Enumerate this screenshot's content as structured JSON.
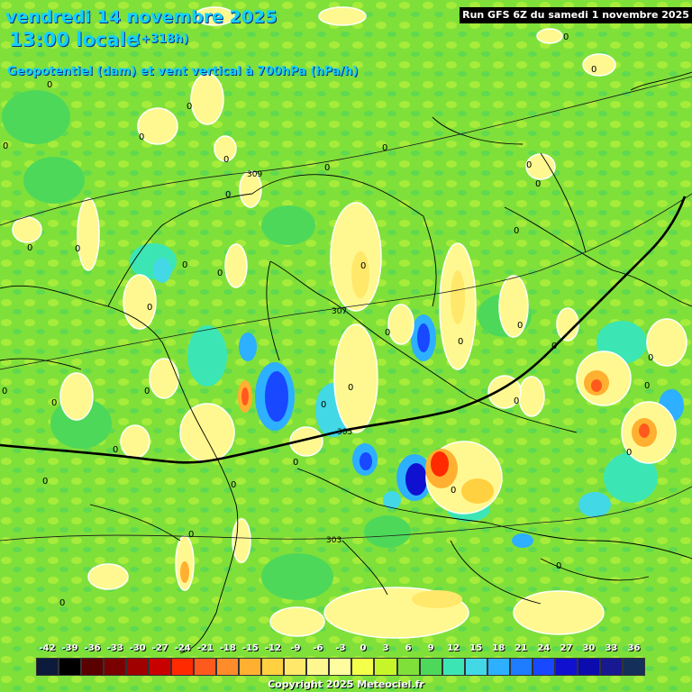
{
  "header": {
    "date": "vendredi 14 novembre 2025",
    "time": "13:00 locale",
    "offset": "(+318h)",
    "variable": "Geopotentiel (dam) et vent vertical à 700hPa (hPa/h)",
    "run": "Run GFS 6Z du samedi 1 novembre 2025"
  },
  "legend": {
    "ticks": [
      "-42",
      "-39",
      "-36",
      "-33",
      "-30",
      "-27",
      "-24",
      "-21",
      "-18",
      "-15",
      "-12",
      "-9",
      "-6",
      "-3",
      "0",
      "3",
      "6",
      "9",
      "12",
      "15",
      "18",
      "21",
      "24",
      "27",
      "30",
      "33",
      "36"
    ],
    "colors": [
      "#0c1a3c",
      "#000000",
      "#5a0000",
      "#7a0000",
      "#a00000",
      "#c80000",
      "#ff2a00",
      "#ff5a1e",
      "#ff8c2a",
      "#ffb030",
      "#ffd040",
      "#ffe86a",
      "#fff890",
      "#fffda0",
      "#f4ff4a",
      "#c6f52a",
      "#7fe03a",
      "#4ed85a",
      "#3ce6b4",
      "#42d8e6",
      "#2cb0ff",
      "#1e7cff",
      "#1848ff",
      "#1010d0",
      "#0c0cae",
      "#181890",
      "#14305a"
    ]
  },
  "contours": [
    {
      "label": "309"
    },
    {
      "label": "307"
    },
    {
      "label": "305"
    },
    {
      "label": "303"
    }
  ],
  "zero_labels": [
    "0",
    "0",
    "0",
    "0",
    "0",
    "0",
    "0",
    "0",
    "0",
    "0",
    "0",
    "0",
    "0",
    "0",
    "0",
    "0",
    "0",
    "0",
    "0",
    "0",
    "0",
    "0",
    "0",
    "0",
    "0",
    "0",
    "0",
    "0",
    "0",
    "0",
    "0",
    "0",
    "0",
    "0",
    "0",
    "0",
    "0",
    "0",
    "0",
    "0"
  ],
  "copyright": "Copyright 2025 Meteociel.fr",
  "colors": {
    "background": "#7fe03a",
    "title": "#12d0ff"
  }
}
